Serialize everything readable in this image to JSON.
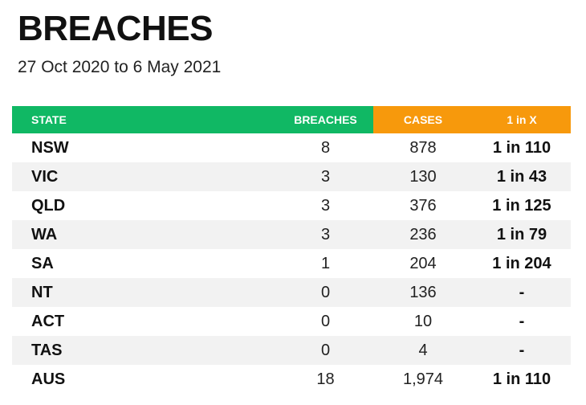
{
  "title": "BREACHES",
  "subtitle": "27 Oct 2020 to 6 May 2021",
  "colors": {
    "header_green": "#10b864",
    "header_orange": "#f7990c",
    "row_alt": "#f2f2f2"
  },
  "table": {
    "headers": {
      "state": "STATE",
      "breaches": "BREACHES",
      "cases": "CASES",
      "ratio": "1 in X"
    },
    "rows": [
      {
        "state": "NSW",
        "breaches": "8",
        "cases": "878",
        "ratio": "1 in 110"
      },
      {
        "state": "VIC",
        "breaches": "3",
        "cases": "130",
        "ratio": "1 in 43"
      },
      {
        "state": "QLD",
        "breaches": "3",
        "cases": "376",
        "ratio": "1 in 125"
      },
      {
        "state": "WA",
        "breaches": "3",
        "cases": "236",
        "ratio": "1 in 79"
      },
      {
        "state": "SA",
        "breaches": "1",
        "cases": "204",
        "ratio": "1 in 204"
      },
      {
        "state": "NT",
        "breaches": "0",
        "cases": "136",
        "ratio": "-"
      },
      {
        "state": "ACT",
        "breaches": "0",
        "cases": "10",
        "ratio": "-"
      },
      {
        "state": "TAS",
        "breaches": "0",
        "cases": "4",
        "ratio": "-"
      },
      {
        "state": "AUS",
        "breaches": "18",
        "cases": "1,974",
        "ratio": "1 in 110"
      }
    ]
  }
}
